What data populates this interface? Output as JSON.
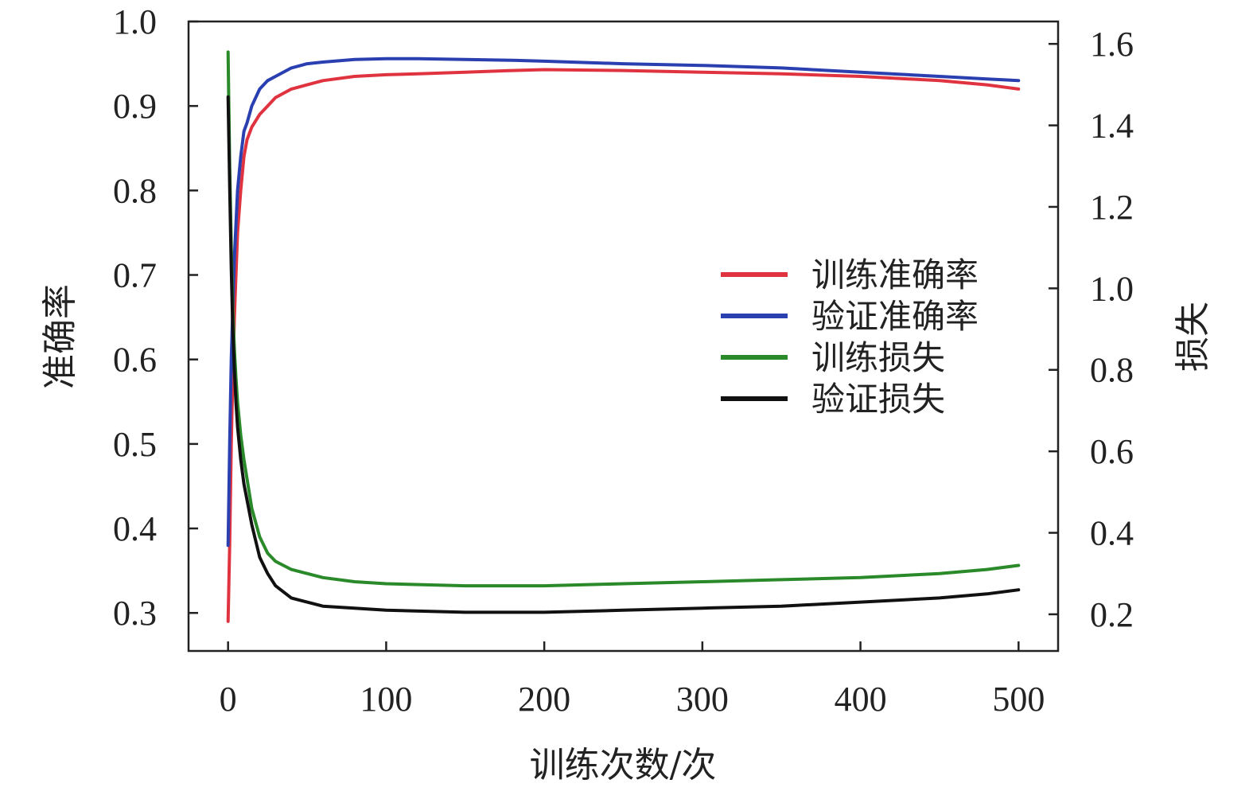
{
  "chart_data": {
    "type": "line",
    "xlabel": "训练次数/次",
    "ylabel": "准确率",
    "y2label": "损失",
    "xlim": [
      -25,
      525
    ],
    "ylim": [
      0.255,
      1.0
    ],
    "y2lim": [
      0.11,
      1.655
    ],
    "x_ticks": [
      0,
      100,
      200,
      300,
      400,
      500
    ],
    "y_ticks": [
      0.3,
      0.4,
      0.5,
      0.6,
      0.7,
      0.8,
      0.9,
      1.0
    ],
    "y2_ticks": [
      0.2,
      0.4,
      0.6,
      0.8,
      1.0,
      1.2,
      1.4,
      1.6
    ],
    "grid": false,
    "legend_position": "center-right",
    "series": [
      {
        "name": "训练准确率",
        "axis": "left",
        "color": "#e03340",
        "x": [
          0,
          1,
          2,
          3,
          4,
          5,
          6,
          8,
          10,
          12,
          15,
          20,
          25,
          30,
          40,
          50,
          60,
          80,
          100,
          120,
          150,
          180,
          200,
          250,
          300,
          350,
          400,
          450,
          480,
          500
        ],
        "values": [
          0.29,
          0.38,
          0.5,
          0.58,
          0.65,
          0.7,
          0.75,
          0.8,
          0.84,
          0.86,
          0.875,
          0.89,
          0.9,
          0.91,
          0.92,
          0.925,
          0.93,
          0.935,
          0.937,
          0.938,
          0.94,
          0.942,
          0.943,
          0.942,
          0.94,
          0.938,
          0.935,
          0.93,
          0.925,
          0.92
        ]
      },
      {
        "name": "验证准确率",
        "axis": "left",
        "color": "#2a3fb0",
        "x": [
          0,
          1,
          2,
          3,
          4,
          5,
          6,
          8,
          10,
          12,
          15,
          20,
          25,
          30,
          40,
          50,
          60,
          80,
          100,
          120,
          150,
          180,
          200,
          250,
          300,
          350,
          400,
          450,
          480,
          500
        ],
        "values": [
          0.38,
          0.5,
          0.6,
          0.66,
          0.72,
          0.76,
          0.8,
          0.84,
          0.87,
          0.88,
          0.9,
          0.92,
          0.93,
          0.935,
          0.945,
          0.95,
          0.952,
          0.955,
          0.956,
          0.956,
          0.955,
          0.954,
          0.953,
          0.95,
          0.948,
          0.945,
          0.94,
          0.935,
          0.932,
          0.93
        ]
      },
      {
        "name": "训练损失",
        "axis": "right",
        "color": "#2a8a2a",
        "x": [
          0,
          1,
          2,
          3,
          4,
          5,
          6,
          8,
          10,
          15,
          20,
          25,
          30,
          40,
          50,
          60,
          80,
          100,
          150,
          200,
          250,
          300,
          350,
          400,
          450,
          480,
          500
        ],
        "values": [
          1.58,
          1.3,
          1.1,
          0.95,
          0.85,
          0.78,
          0.72,
          0.64,
          0.58,
          0.46,
          0.39,
          0.35,
          0.33,
          0.31,
          0.3,
          0.29,
          0.28,
          0.275,
          0.27,
          0.27,
          0.275,
          0.28,
          0.285,
          0.29,
          0.3,
          0.31,
          0.32
        ]
      },
      {
        "name": "验证损失",
        "axis": "right",
        "color": "#111111",
        "x": [
          0,
          1,
          2,
          3,
          4,
          5,
          6,
          8,
          10,
          15,
          20,
          25,
          30,
          40,
          50,
          60,
          80,
          100,
          150,
          200,
          250,
          300,
          350,
          400,
          450,
          480,
          500
        ],
        "values": [
          1.47,
          1.25,
          1.05,
          0.9,
          0.8,
          0.72,
          0.66,
          0.58,
          0.52,
          0.42,
          0.34,
          0.3,
          0.27,
          0.24,
          0.23,
          0.22,
          0.215,
          0.21,
          0.205,
          0.205,
          0.21,
          0.215,
          0.22,
          0.23,
          0.24,
          0.25,
          0.26
        ]
      }
    ]
  }
}
